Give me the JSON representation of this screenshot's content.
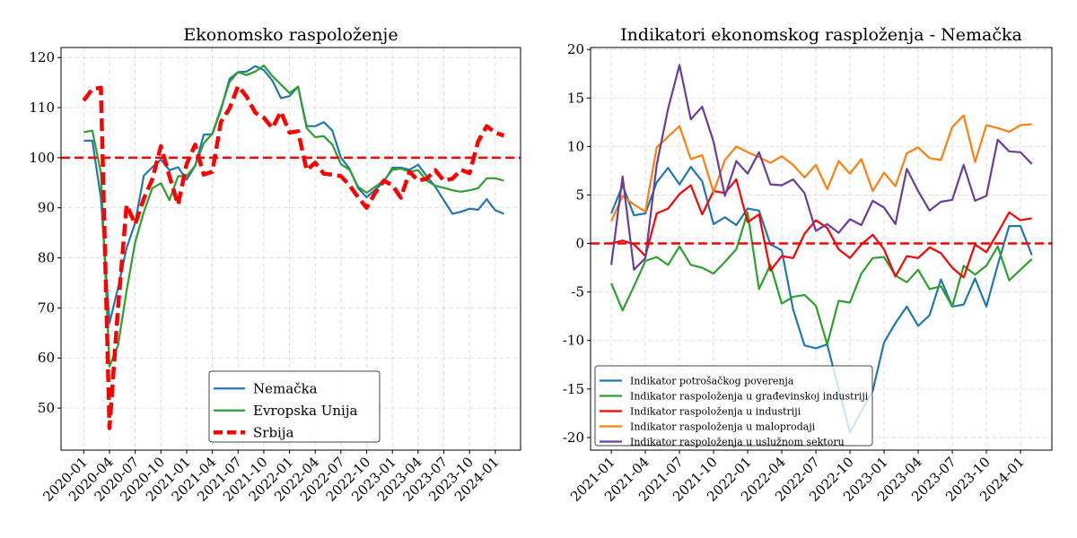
{
  "chart_data": [
    {
      "type": "line",
      "title": "Ekonomsko raspoloženje",
      "xlabel": "",
      "ylabel": "",
      "start_month": "2020-01",
      "ylim": [
        41.6,
        122.0
      ],
      "xlim_months": [
        -2.65,
        50.95
      ],
      "yticks": [
        50,
        60,
        70,
        80,
        90,
        100,
        110,
        120
      ],
      "xticks": [
        {
          "i": 0,
          "label": "2020-01"
        },
        {
          "i": 3,
          "label": "2020-04"
        },
        {
          "i": 6,
          "label": "2020-07"
        },
        {
          "i": 9,
          "label": "2020-10"
        },
        {
          "i": 12,
          "label": "2021-01"
        },
        {
          "i": 15,
          "label": "2021-04"
        },
        {
          "i": 18,
          "label": "2021-07"
        },
        {
          "i": 21,
          "label": "2021-10"
        },
        {
          "i": 24,
          "label": "2022-01"
        },
        {
          "i": 27,
          "label": "2022-04"
        },
        {
          "i": 30,
          "label": "2022-07"
        },
        {
          "i": 33,
          "label": "2022-10"
        },
        {
          "i": 36,
          "label": "2023-01"
        },
        {
          "i": 39,
          "label": "2023-04"
        },
        {
          "i": 42,
          "label": "2023-07"
        },
        {
          "i": 45,
          "label": "2023-10"
        },
        {
          "i": 48,
          "label": "2024-01"
        }
      ],
      "grid": true,
      "reference_line": {
        "y": 100,
        "color": "#ff0000",
        "style": "dashed"
      },
      "legend_placement": "lower-center",
      "series": [
        {
          "name": "Nemačka",
          "color": "#1f77b4",
          "style": "solid",
          "values": [
            103.4,
            103.4,
            92,
            67,
            74,
            82,
            87,
            96.4,
            98.1,
            99.6,
            97.5,
            98.1,
            95.6,
            98.4,
            104.6,
            104.7,
            109.5,
            115.7,
            117.1,
            117.2,
            118.3,
            117.5,
            115.4,
            111.9,
            112.3,
            114.2,
            106.3,
            106.3,
            107.1,
            105.4,
            100,
            97.8,
            93.9,
            92.1,
            93.6,
            95.1,
            98,
            98,
            97.6,
            98.6,
            96.3,
            94.2,
            91.5,
            88.8,
            89.2,
            89.8,
            89.6,
            91.7,
            89.5,
            88.8
          ]
        },
        {
          "name": "Evropska Unija",
          "color": "#2ca02c",
          "style": "solid",
          "values": [
            105.1,
            105.4,
            97,
            58.3,
            62.5,
            73.5,
            83.1,
            89.1,
            93.9,
            94.9,
            91.5,
            96.3,
            96.3,
            98.4,
            102.9,
            104.8,
            109.8,
            115.1,
            117.1,
            116.5,
            117.2,
            118.4,
            116.3,
            114.6,
            112.9,
            114.2,
            105.9,
            104.1,
            104.3,
            102.6,
            98.7,
            97.6,
            94.2,
            93,
            94.2,
            95.4,
            97.6,
            97.8,
            97.2,
            97.5,
            95.4,
            94.4,
            94,
            93.5,
            93.2,
            93.5,
            93.9,
            95.9,
            95.9,
            95.4
          ]
        },
        {
          "name": "Srbija",
          "color": "#ff0000",
          "style": "dashed",
          "values": [
            111.4,
            113.7,
            114,
            46,
            70,
            90.6,
            86.7,
            91.8,
            95.7,
            102.3,
            96.3,
            90.6,
            98.7,
            102.6,
            96.6,
            97.2,
            107.1,
            109.8,
            114.3,
            112.2,
            109,
            108,
            105.9,
            109.2,
            105,
            105.3,
            97.5,
            99,
            96.8,
            96.6,
            96.3,
            94.5,
            92.1,
            90,
            93,
            95.4,
            94.5,
            92,
            97.2,
            95.4,
            95.8,
            97.5,
            95.4,
            95.8,
            97.6,
            96.9,
            103.2,
            106.3,
            105,
            104.4
          ]
        }
      ]
    },
    {
      "type": "line",
      "title": "Indikatori ekonomskog rasploženja - Nemačka",
      "xlabel": "",
      "ylabel": "",
      "start_month": "2021-01",
      "ylim": [
        -21.3,
        20.2
      ],
      "xlim_months": [
        -1.82,
        38.76
      ],
      "yticks": [
        -20,
        -15,
        -10,
        -5,
        0,
        5,
        10,
        15,
        20
      ],
      "xticks": [
        {
          "i": 0,
          "label": "2021-01"
        },
        {
          "i": 3,
          "label": "2021-04"
        },
        {
          "i": 6,
          "label": "2021-07"
        },
        {
          "i": 9,
          "label": "2021-10"
        },
        {
          "i": 12,
          "label": "2022-01"
        },
        {
          "i": 15,
          "label": "2022-04"
        },
        {
          "i": 18,
          "label": "2022-07"
        },
        {
          "i": 21,
          "label": "2022-10"
        },
        {
          "i": 24,
          "label": "2023-01"
        },
        {
          "i": 27,
          "label": "2023-04"
        },
        {
          "i": 30,
          "label": "2023-07"
        },
        {
          "i": 33,
          "label": "2023-10"
        },
        {
          "i": 36,
          "label": "2024-01"
        }
      ],
      "grid": true,
      "reference_line": {
        "y": 0,
        "color": "#ff0000",
        "style": "dashed"
      },
      "legend_placement": "lower-left",
      "series": [
        {
          "name": "Indikator potrošačkog poverenja",
          "color": "#1f77b4",
          "style": "solid",
          "values": [
            3.1,
            6.0,
            2.9,
            3.1,
            6.3,
            7.8,
            6.1,
            7.9,
            6.4,
            2.0,
            2.7,
            1.9,
            3.6,
            3.4,
            -0.1,
            -0.7,
            -6.8,
            -10.5,
            -10.8,
            -10.4,
            -15,
            -19.5,
            -17.3,
            -15.2,
            -10.2,
            -8.2,
            -6.5,
            -8.5,
            -7.4,
            -3.7,
            -6.5,
            -6.3,
            -3.6,
            -6.5,
            -2.2,
            1.8,
            1.8,
            -1.2
          ]
        },
        {
          "name": "Indikator raspoloženja u građevinskoj industriji",
          "color": "#2ca02c",
          "style": "solid",
          "values": [
            -4.1,
            -6.9,
            -4.4,
            -1.8,
            -1.4,
            -2.2,
            -0.3,
            -2.2,
            -2.5,
            -3.1,
            -1.9,
            -0.6,
            3.2,
            -4.7,
            -2.2,
            -6.2,
            -5.5,
            -5.3,
            -6.4,
            -10.4,
            -5.9,
            -6.1,
            -3.1,
            -1.5,
            -1.4,
            -3.3,
            -4.0,
            -2.7,
            -4.7,
            -4.4,
            -6.5,
            -2.3,
            -3.2,
            -2.3,
            -0.3,
            -3.8,
            -2.7,
            -1.6
          ]
        },
        {
          "name": "Indikator raspoloženja u industriji",
          "color": "#ff0000",
          "style": "solid",
          "values": [
            0,
            0.3,
            -0.1,
            -1.3,
            3.1,
            3.6,
            5.1,
            6.0,
            3.0,
            5.4,
            5.2,
            6.6,
            2.2,
            3.0,
            -2.8,
            -1.3,
            -1.5,
            1.0,
            2.4,
            1.6,
            -0.6,
            -1.5,
            -0.1,
            0.9,
            -0.6,
            -3.4,
            -1.3,
            -1.5,
            -0.4,
            -1.0,
            -2.5,
            -3.5,
            -0.1,
            -0.9,
            1.1,
            3.2,
            2.4,
            2.6
          ]
        },
        {
          "name": "Indikator raspoloženja u maloprodaji",
          "color": "#ff7f0e",
          "style": "solid",
          "values": [
            2.3,
            4.9,
            4.0,
            3.3,
            9.9,
            11.0,
            12.1,
            8.7,
            9.1,
            5.3,
            8.6,
            10.0,
            9.4,
            8.9,
            8.3,
            9.0,
            8.1,
            6.8,
            8.1,
            5.6,
            8.5,
            7.2,
            8.7,
            5.4,
            7.3,
            5.9,
            9.3,
            9.9,
            8.8,
            8.6,
            12.0,
            13.2,
            8.4,
            12.2,
            11.9,
            11.5,
            12.2,
            12.3
          ]
        },
        {
          "name": "Indikator raspoloženja u uslužnom sektoru",
          "color": "#6a3d9a",
          "style": "solid",
          "values": [
            -2.2,
            6.9,
            -2.7,
            -1.5,
            8.1,
            13.9,
            18.4,
            12.8,
            14.1,
            10.5,
            4.9,
            8.5,
            7.2,
            9.4,
            6.1,
            6.0,
            6.6,
            5.2,
            1.3,
            2.0,
            1.1,
            2.5,
            1.9,
            4.4,
            3.7,
            2.0,
            7.7,
            5.4,
            3.4,
            4.3,
            4.5,
            8.1,
            4.4,
            4.9,
            10.7,
            9.5,
            9.4,
            8.2
          ]
        }
      ]
    }
  ]
}
